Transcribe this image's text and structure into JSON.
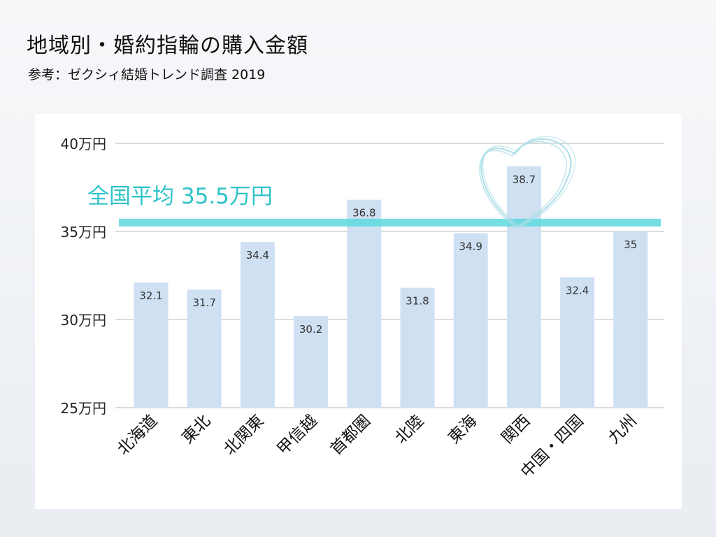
{
  "header": {
    "title": "地域別・婚約指輪の購入金額",
    "subtitle": "参考：ゼクシィ結婚トレンド調査 2019"
  },
  "chart_data": {
    "type": "bar",
    "title": "",
    "xlabel": "",
    "ylabel": "",
    "categories": [
      "北海道",
      "東北",
      "北関東",
      "甲信越",
      "首都圏",
      "北陸",
      "東海",
      "関西",
      "中国・四国",
      "九州"
    ],
    "values": [
      32.1,
      31.7,
      34.4,
      30.2,
      36.8,
      31.8,
      34.9,
      38.7,
      32.4,
      35
    ],
    "value_labels": [
      "32.1",
      "31.7",
      "34.4",
      "30.2",
      "36.8",
      "31.8",
      "34.9",
      "38.7",
      "32.4",
      "35"
    ],
    "ylim": [
      25,
      40
    ],
    "yticks": [
      {
        "value": 25,
        "label": "25万円"
      },
      {
        "value": 30,
        "label": "30万円"
      },
      {
        "value": 35,
        "label": "35万円"
      },
      {
        "value": 40,
        "label": "40万円"
      }
    ],
    "grid": true,
    "reference_line": {
      "value": 35.5,
      "label": "全国平均 35.5万円",
      "color": "#5dd8de"
    },
    "highlight": {
      "category": "関西",
      "shape": "heart",
      "color": "#a8dde6"
    },
    "colors": {
      "bar": "#cfe0f3",
      "grid": "#c8c8c8",
      "text": "#222222"
    }
  }
}
